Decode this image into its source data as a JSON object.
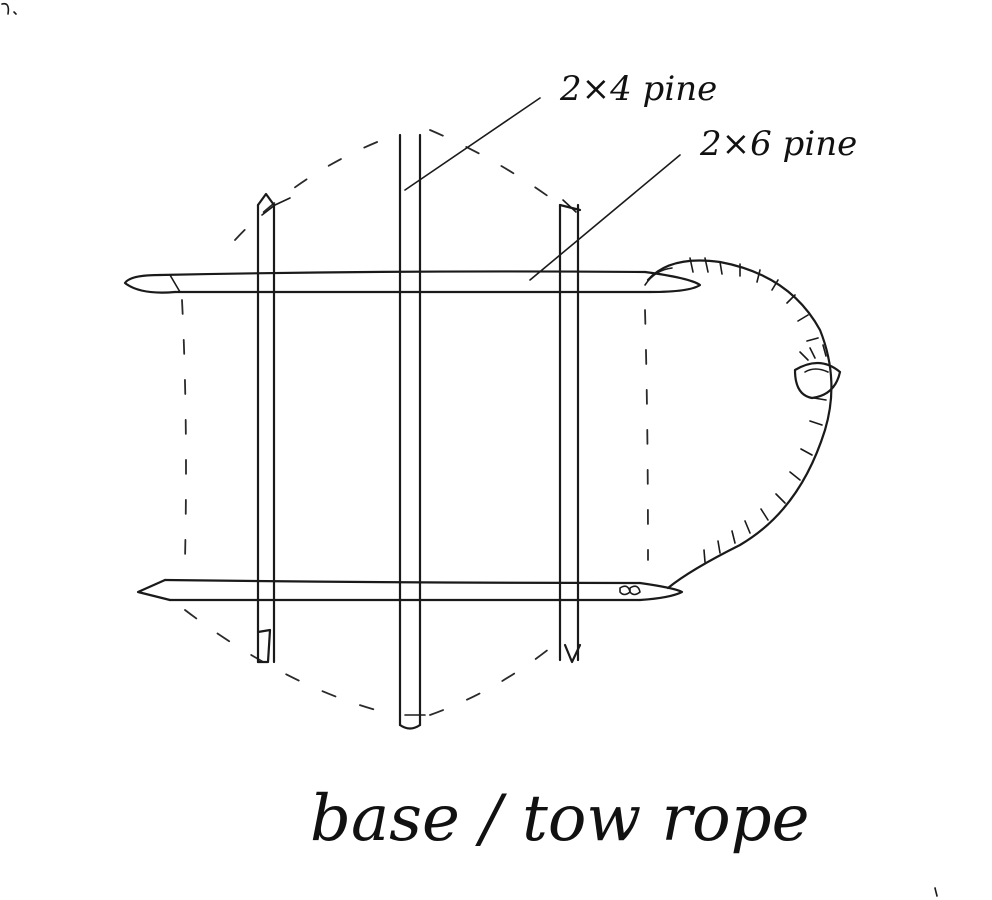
{
  "labels": {
    "pine_2x4": "2×4 pine",
    "pine_2x6": "2×6 pine",
    "caption": "base / tow rope"
  }
}
